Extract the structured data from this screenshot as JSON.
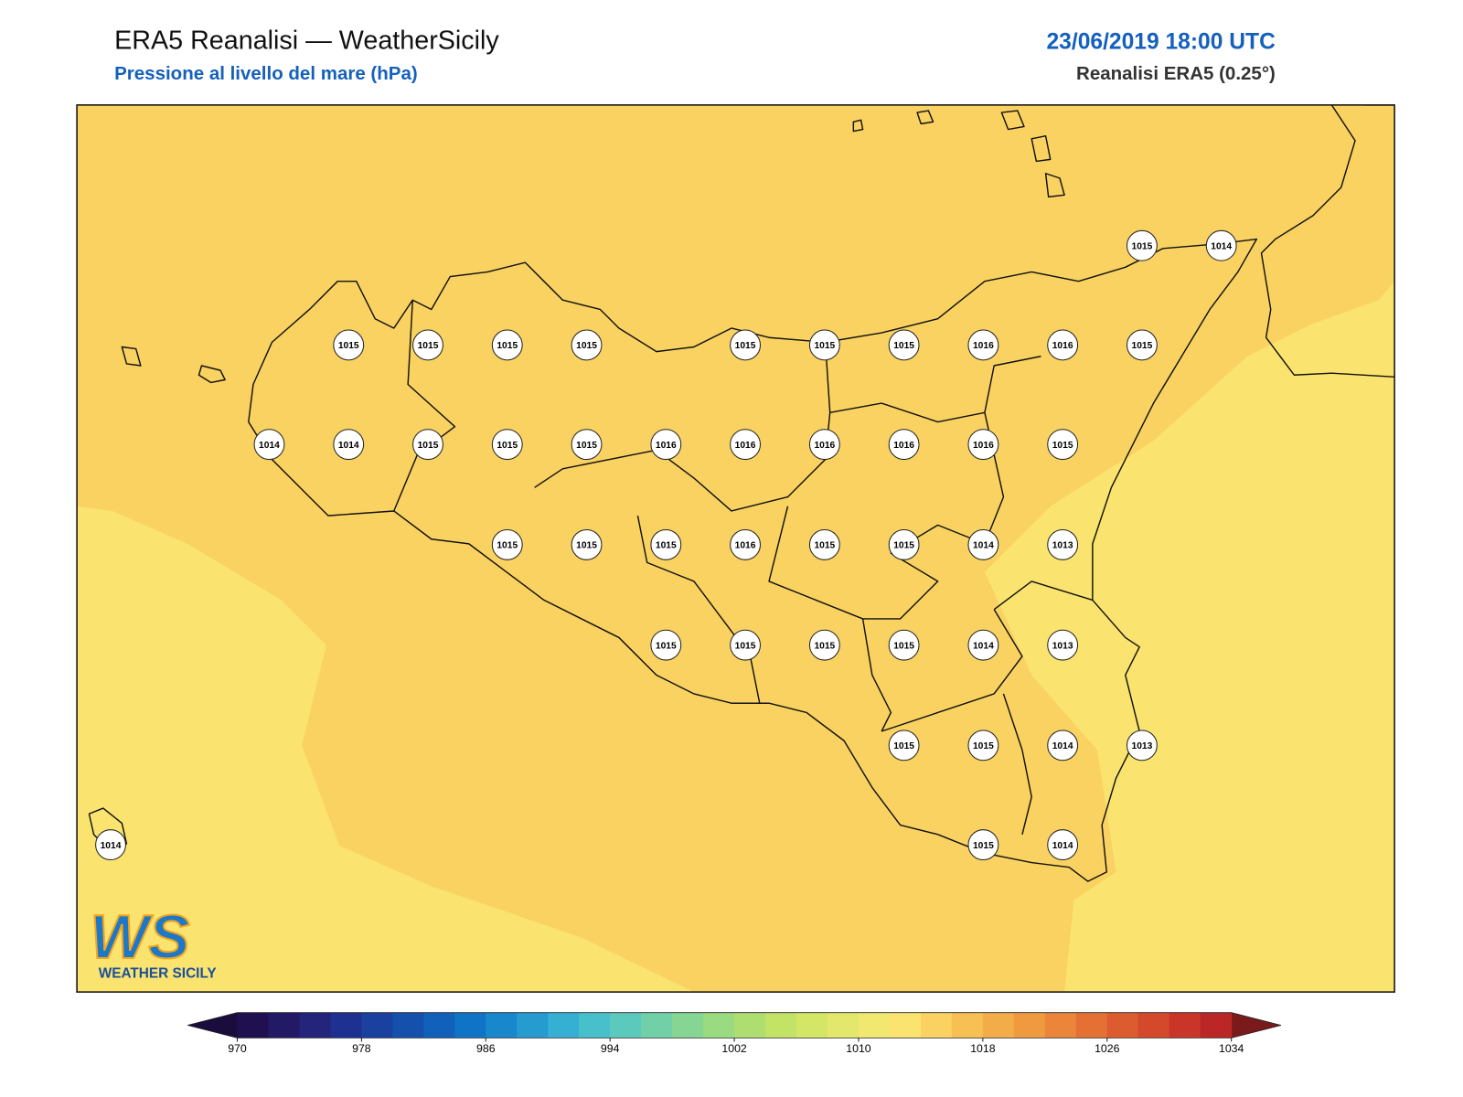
{
  "header": {
    "title": "ERA5 Reanalisi — WeatherSicily",
    "subtitle": "Pressione al livello del mare (hPa)",
    "datetime": "23/06/2019 18:00 UTC",
    "product": "Reanalisi ERA5 (0.25°)"
  },
  "map": {
    "station_rows": [
      [
        1015,
        1014
      ],
      [
        1015,
        1015,
        1015,
        1015,
        1015,
        1015,
        1015,
        1016,
        1016,
        1015
      ],
      [
        1014,
        1014,
        1015,
        1015,
        1015,
        1016,
        1016,
        1016,
        1016,
        1016,
        1015
      ],
      [
        1015,
        1015,
        1015,
        1016,
        1015,
        1015,
        1014,
        1013
      ],
      [
        1015,
        1015,
        1015,
        1015,
        1014,
        1013
      ],
      [
        1015,
        1015,
        1014,
        1013
      ],
      [
        1014,
        1015,
        1014
      ]
    ]
  },
  "logo": {
    "mark": "WS",
    "name": "WEATHER SICILY"
  },
  "colorbar": {
    "ticks": [
      970,
      978,
      986,
      994,
      1002,
      1010,
      1018,
      1026,
      1034
    ],
    "under": "#1a0c3d",
    "over": "#7a1a1a",
    "colors": [
      "#21104f",
      "#231a66",
      "#23247a",
      "#1f3190",
      "#1a40a0",
      "#1550ad",
      "#1161bb",
      "#0f74c6",
      "#1887cc",
      "#259bd0",
      "#36b0d2",
      "#48c0cc",
      "#5cc9bd",
      "#71d0a8",
      "#86d593",
      "#9ada80",
      "#aede70",
      "#c2e366",
      "#d3e666",
      "#e3e86c",
      "#f0e86f",
      "#fae36f",
      "#f9d262",
      "#f6c052",
      "#f3ad48",
      "#f09a40",
      "#eb853a",
      "#e47034",
      "#dc5b2f",
      "#d4482c",
      "#c93629",
      "#bb2727"
    ]
  }
}
